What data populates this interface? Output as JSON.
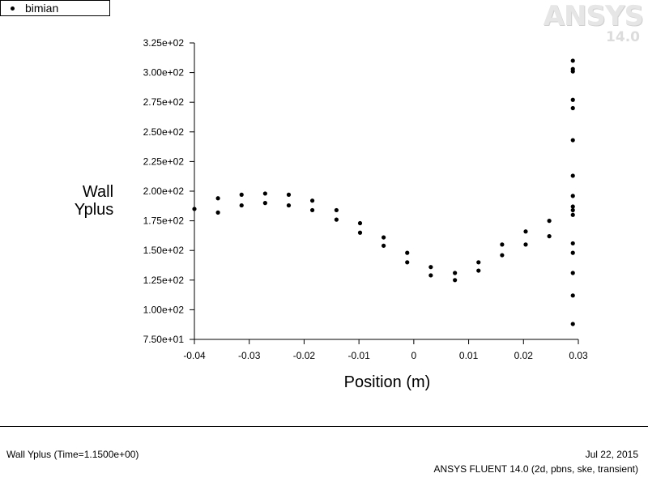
{
  "legend": {
    "label": "bimian"
  },
  "logo": {
    "brand": "ANSYS",
    "version": "14.0"
  },
  "footer": {
    "left_text": "Wall Yplus  (Time=1.1500e+00)",
    "date": "Jul 22, 2015",
    "solver_info": "ANSYS FLUENT 14.0 (2d, pbns, ske, transient)"
  },
  "chart_data": {
    "type": "scatter",
    "ylabel_lines": [
      "Wall",
      "Yplus"
    ],
    "xlabel": "Position (m)",
    "xlim": [
      -0.04,
      0.03
    ],
    "ylim": [
      75,
      325
    ],
    "x_ticks": [
      {
        "v": -0.04,
        "label": "-0.04"
      },
      {
        "v": -0.03,
        "label": "-0.03"
      },
      {
        "v": -0.02,
        "label": "-0.02"
      },
      {
        "v": -0.01,
        "label": "-0.01"
      },
      {
        "v": 0,
        "label": "0"
      },
      {
        "v": 0.01,
        "label": "0.01"
      },
      {
        "v": 0.02,
        "label": "0.02"
      },
      {
        "v": 0.03,
        "label": "0.03"
      }
    ],
    "y_ticks": [
      {
        "v": 75,
        "label": "7.50e+01"
      },
      {
        "v": 100,
        "label": "1.00e+02"
      },
      {
        "v": 125,
        "label": "1.25e+02"
      },
      {
        "v": 150,
        "label": "1.50e+02"
      },
      {
        "v": 175,
        "label": "1.75e+02"
      },
      {
        "v": 200,
        "label": "2.00e+02"
      },
      {
        "v": 225,
        "label": "2.25e+02"
      },
      {
        "v": 250,
        "label": "2.50e+02"
      },
      {
        "v": 275,
        "label": "2.75e+02"
      },
      {
        "v": 300,
        "label": "3.00e+02"
      },
      {
        "v": 325,
        "label": "3.25e+02"
      }
    ],
    "series": [
      {
        "name": "bimian",
        "points": [
          [
            -0.04,
            185
          ],
          [
            -0.0357,
            194
          ],
          [
            -0.0357,
            182
          ],
          [
            -0.0314,
            197
          ],
          [
            -0.0314,
            188
          ],
          [
            -0.0271,
            198
          ],
          [
            -0.0271,
            190
          ],
          [
            -0.0228,
            197
          ],
          [
            -0.0228,
            188
          ],
          [
            -0.0185,
            192
          ],
          [
            -0.0185,
            184
          ],
          [
            -0.0141,
            184
          ],
          [
            -0.0141,
            176
          ],
          [
            -0.0098,
            173
          ],
          [
            -0.0098,
            165
          ],
          [
            -0.0055,
            161
          ],
          [
            -0.0055,
            154
          ],
          [
            -0.0012,
            148
          ],
          [
            -0.0012,
            140
          ],
          [
            0.0031,
            136
          ],
          [
            0.0031,
            129
          ],
          [
            0.0075,
            131
          ],
          [
            0.0075,
            125
          ],
          [
            0.0118,
            140
          ],
          [
            0.0118,
            133
          ],
          [
            0.0161,
            155
          ],
          [
            0.0161,
            146
          ],
          [
            0.0204,
            166
          ],
          [
            0.0204,
            155
          ],
          [
            0.0247,
            175
          ],
          [
            0.0247,
            162
          ],
          [
            0.029,
            310
          ],
          [
            0.029,
            303
          ],
          [
            0.029,
            301
          ],
          [
            0.029,
            277
          ],
          [
            0.029,
            270
          ],
          [
            0.029,
            243
          ],
          [
            0.029,
            213
          ],
          [
            0.029,
            196
          ],
          [
            0.029,
            187
          ],
          [
            0.029,
            184
          ],
          [
            0.029,
            180
          ],
          [
            0.029,
            156
          ],
          [
            0.029,
            148
          ],
          [
            0.029,
            131
          ],
          [
            0.029,
            112
          ],
          [
            0.029,
            88
          ]
        ]
      }
    ]
  }
}
